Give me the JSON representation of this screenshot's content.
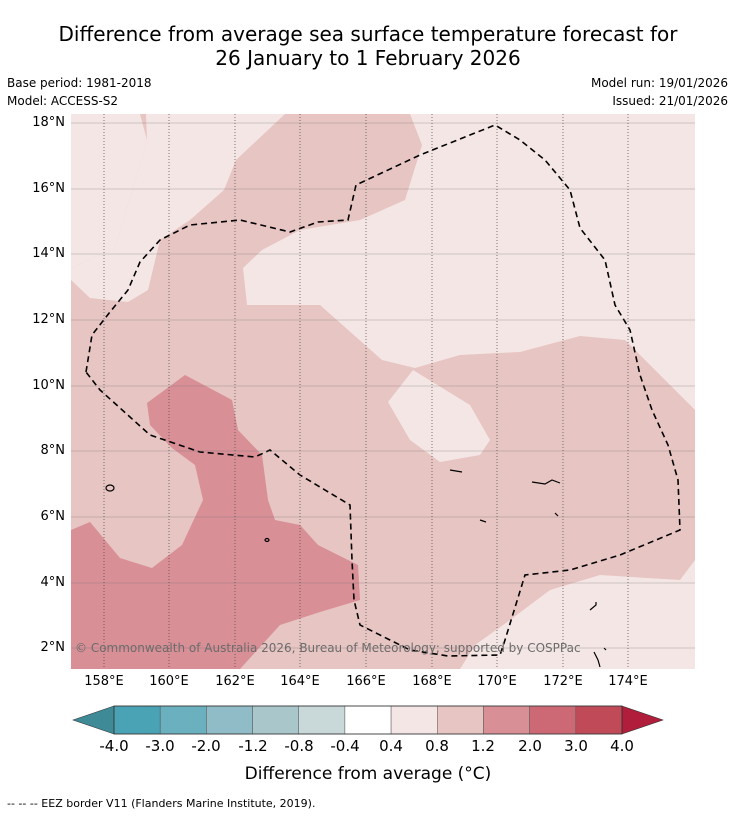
{
  "title_line1": "Difference from average sea surface temperature forecast for",
  "title_line2": "26 January to 1 February 2026",
  "base_period": "Base period: 1981-2018",
  "model": "Model: ACCESS-S2",
  "model_run": "Model run: 19/01/2026",
  "issued": "Issued: 21/01/2026",
  "copyright": "© Commonwealth of Australia 2026, Bureau of Meteorology; supported by COSPPac",
  "lat_labels": [
    "18°N",
    "16°N",
    "14°N",
    "12°N",
    "10°N",
    "8°N",
    "6°N",
    "4°N",
    "2°N"
  ],
  "lon_labels": [
    "158°E",
    "160°E",
    "162°E",
    "164°E",
    "166°E",
    "168°E",
    "170°E",
    "172°E",
    "174°E"
  ],
  "colorbar": {
    "labels": [
      "-4.0",
      "-3.0",
      "-2.0",
      "-1.2",
      "-0.8",
      "-0.4",
      "0.4",
      "0.8",
      "1.2",
      "2.0",
      "3.0",
      "4.0"
    ],
    "colors": [
      "#4aa3b5",
      "#6bb0bf",
      "#8fbcc6",
      "#a9c7cb",
      "#c9d9da",
      "#ffffff",
      "#f4e6e5",
      "#e7c5c2",
      "#d88f96",
      "#cc6974",
      "#c14a58"
    ],
    "low_extend_color": "#3e8b97",
    "high_extend_color": "#b01e3b",
    "title": "Difference from average (°C)"
  },
  "legend_footer": "--  --  -- EEZ border V11 (Flanders Marine Institute, 2019).",
  "map_colors": {
    "c04_08": "#f4e6e5",
    "c08_12": "#e7c5c2",
    "c12_20": "#d88f96"
  }
}
